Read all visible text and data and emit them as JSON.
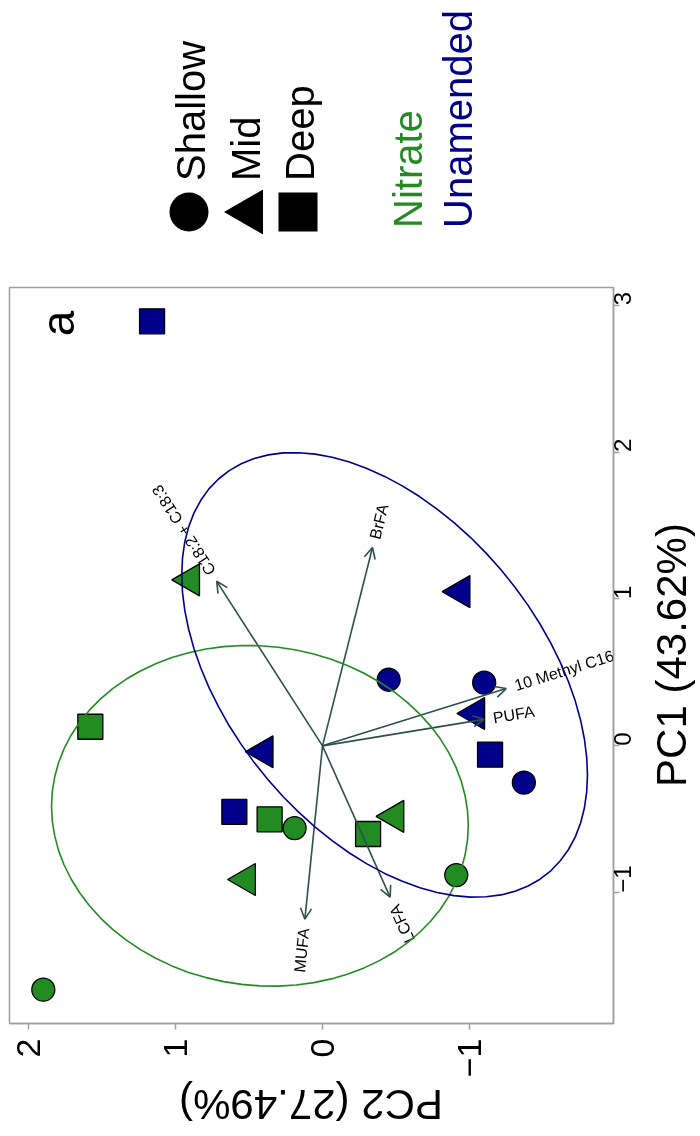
{
  "chart_data": {
    "type": "scatter",
    "title": "a",
    "xlabel": "PC2 (27.49%)",
    "ylabel": "PC1 (43.62%)",
    "xlim": [
      2.13,
      -1.98
    ],
    "ylim": [
      -1.89,
      3.12
    ],
    "xticks": [
      2,
      1,
      0,
      {
        "value": -1,
        "label": "−1"
      }
    ],
    "yticks": [
      {
        "value": -1,
        "label": "−1"
      },
      0,
      1,
      2,
      3
    ],
    "grid": false,
    "legend": "top",
    "series": [
      {
        "name": "Nitrate",
        "color": "#228b22",
        "marker": "circle",
        "x": [
          0.19,
          1.9,
          -0.91
        ],
        "values": [
          -0.56,
          -1.66,
          -0.88
        ]
      },
      {
        "color": "#228b22",
        "marker": "triangle",
        "x": [
          0.9,
          0.52,
          -0.49
        ],
        "values": [
          1.13,
          -0.91,
          -0.48
        ]
      },
      {
        "color": "#228b22",
        "marker": "square",
        "x": [
          1.58,
          0.36,
          -0.31
        ],
        "values": [
          0.13,
          -0.5,
          -0.6
        ]
      },
      {
        "name": "Unamended",
        "color": "#00008b",
        "marker": "circle",
        "x": [
          -0.45,
          -1.1,
          -1.37
        ],
        "values": [
          0.45,
          0.43,
          -0.25
        ]
      },
      {
        "color": "#00008b",
        "marker": "triangle",
        "x": [
          -0.94,
          0.4,
          -1.04
        ],
        "values": [
          1.05,
          -0.04,
          0.22
        ]
      },
      {
        "color": "#00008b",
        "marker": "square",
        "x": [
          1.16,
          0.6,
          -1.14
        ],
        "values": [
          2.89,
          -0.45,
          -0.06
        ]
      }
    ],
    "annotations": [
      "Shallow",
      "Mid",
      "Deep",
      "C18:2 + C18:3",
      "BrFA",
      "10 Methyl C16",
      "PUFA",
      "LCFA",
      "MUFA"
    ]
  }
}
